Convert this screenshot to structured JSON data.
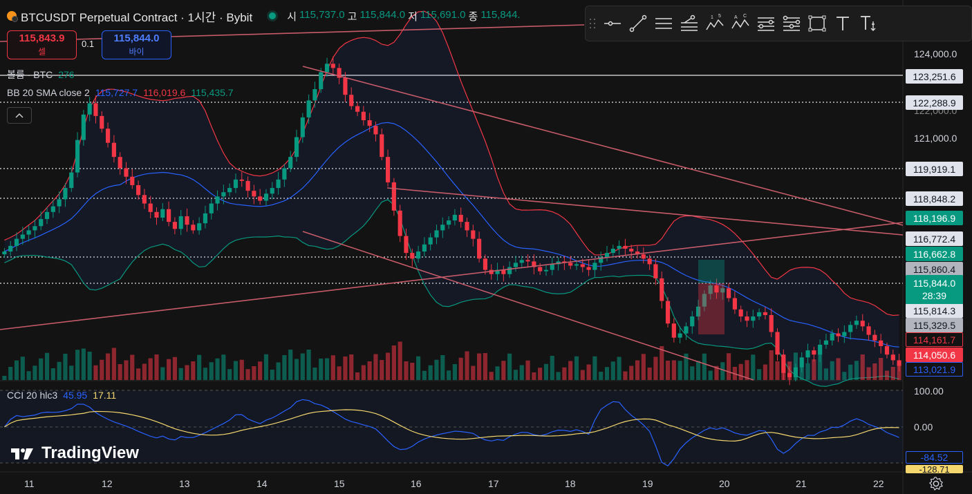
{
  "header": {
    "symbol_title": "BTCUSDT Perpetual Contract · 1시간 · Bybit",
    "ohlc": [
      {
        "label": "시",
        "value": "115,737.0"
      },
      {
        "label": "고",
        "value": "115,844.0"
      },
      {
        "label": "저",
        "value": "115,691.0"
      },
      {
        "label": "종",
        "value": "115,844."
      }
    ]
  },
  "trade": {
    "sell_price": "115,843.9",
    "sell_label": "셀",
    "quantity": "0.1",
    "buy_price": "115,844.0",
    "buy_label": "바이"
  },
  "legends": {
    "volume_label": "볼륨 · BTC",
    "volume_value": "276",
    "bb_label": "BB 20 SMA close 2",
    "bb_basis": "115,727.7",
    "bb_upper": "116,019.6",
    "bb_lower": "115,435.7",
    "cci_label": "CCI 20 hlc3",
    "cci_value": "45.95",
    "cci_ma": "17.11"
  },
  "price_axis": {
    "ticks": [
      "124,000.0",
      "121,000.0",
      "122,000.0"
    ],
    "labels": [
      {
        "text": "123,251.6",
        "bg": "#e0e3eb",
        "fg": "#131722",
        "top": 100
      },
      {
        "text": "122,288.9",
        "bg": "#e0e3eb",
        "fg": "#131722",
        "top": 138
      },
      {
        "text": "119,919.1",
        "bg": "#e0e3eb",
        "fg": "#131722",
        "top": 234
      },
      {
        "text": "118,848.2",
        "bg": "#e0e3eb",
        "fg": "#131722",
        "top": 277
      },
      {
        "text": "118,196.9",
        "bg": "#089981",
        "fg": "#ffffff",
        "top": 305
      },
      {
        "text": "116,772.4",
        "bg": "#e0e3eb",
        "fg": "#131722",
        "top": 335
      },
      {
        "text": "116,662.8",
        "bg": "#089981",
        "fg": "#ffffff",
        "top": 357
      },
      {
        "text": "115,860.4",
        "bg": "#b2b5be",
        "fg": "#131722",
        "top": 379
      },
      {
        "text": "115,814.3",
        "bg": "#e0e3eb",
        "fg": "#131722",
        "top": 439
      },
      {
        "text": "115,329.5",
        "bg": "#b2b5be",
        "fg": "#131722",
        "top": 460
      },
      {
        "text": "114,161.7",
        "bg": "#131313",
        "fg": "#f23645",
        "top": 481,
        "border": "#f23645"
      },
      {
        "text": "114,050.6",
        "bg": "#f23645",
        "fg": "#ffffff",
        "top": 503
      },
      {
        "text": "113,021.9",
        "bg": "#131313",
        "fg": "#2962ff",
        "top": 524,
        "border": "#2962ff"
      }
    ],
    "current_price": "115,844.0",
    "countdown": "28:39"
  },
  "cci_axis": {
    "ticks": [
      "100.00",
      "0.00"
    ],
    "labels": [
      {
        "text": "-84.52",
        "fg": "#2962ff"
      },
      {
        "text": "-128.71",
        "fg": "#f5d76e"
      }
    ]
  },
  "time_axis": [
    "11",
    "12",
    "13",
    "14",
    "15",
    "16",
    "17",
    "18",
    "19",
    "20",
    "21",
    "22"
  ],
  "drawing_toolbar": [
    "horizontal-ray",
    "trend-line",
    "parallel-channel",
    "pitchfork",
    "elliott-wave-1-5",
    "abcd-pattern",
    "fib-retracement",
    "fib-extension",
    "rectangle",
    "text",
    "anchored-text"
  ],
  "wave_digits": {
    "one": "1",
    "five": "5",
    "a": "A",
    "c": "C"
  },
  "branding": "TradingView",
  "colors": {
    "up": "#089981",
    "down": "#f23645",
    "bb_basis": "#2962ff",
    "bb_upper": "#f23645",
    "bb_lower": "#089981",
    "cci": "#2962ff",
    "cci_ma": "#f5d76e",
    "trendline": "#c75b69"
  },
  "chart_data": {
    "type": "candlestick",
    "timeframe": "1시간",
    "y_range": [
      112800,
      124300
    ],
    "closes": [
      117350,
      117550,
      117800,
      117950,
      118100,
      118250,
      118500,
      118750,
      118950,
      119200,
      119600,
      120150,
      121300,
      122200,
      122600,
      122150,
      121700,
      121200,
      120700,
      120300,
      120000,
      119700,
      119350,
      119050,
      118750,
      118550,
      118850,
      118400,
      118150,
      118600,
      118300,
      118100,
      118350,
      118700,
      119050,
      119300,
      119450,
      119600,
      119900,
      119850,
      119500,
      119300,
      119150,
      119400,
      119600,
      119900,
      120300,
      120700,
      121400,
      122100,
      122700,
      123100,
      123700,
      124000,
      123850,
      123500,
      122900,
      122500,
      122300,
      122000,
      121800,
      121500,
      120700,
      119800,
      118800,
      117900,
      117300,
      117100,
      117350,
      117600,
      117850,
      118100,
      118300,
      118450,
      118650,
      118400,
      118100,
      117800,
      117100,
      116700,
      116550,
      116700,
      116550,
      116800,
      116950,
      117050,
      117000,
      116800,
      116650,
      116700,
      116900,
      117000,
      116950,
      116850,
      116900,
      116800,
      116700,
      116950,
      117150,
      117300,
      117450,
      117550,
      117450,
      117350,
      117250,
      117100,
      116900,
      116400,
      115600,
      114800,
      114300,
      114450,
      114700,
      115050,
      115400,
      115850,
      116150,
      115900,
      116050,
      115700,
      115300,
      115050,
      114900,
      115050,
      115200,
      115100,
      114500,
      113700,
      113050,
      112900,
      113250,
      113600,
      113850,
      113700,
      114050,
      114200,
      114450,
      114350,
      114500,
      114750,
      114900,
      114700,
      114400,
      114200,
      114000,
      113700,
      113500,
      113300
    ]
  }
}
